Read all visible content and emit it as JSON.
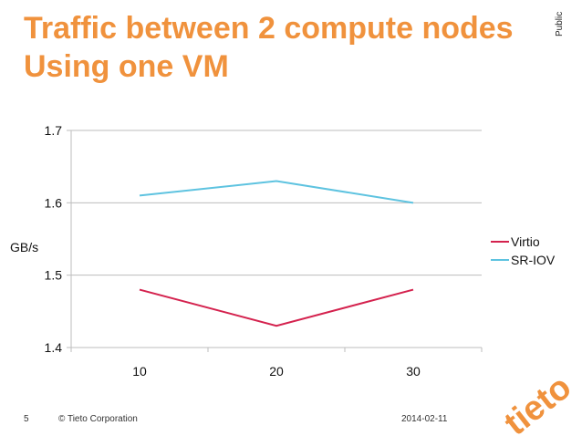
{
  "slide": {
    "title_line1": "Traffic between 2 compute nodes",
    "title_line2": "Using one VM",
    "classification": "Public",
    "page_number": "5",
    "copyright": "© Tieto Corporation",
    "date": "2014-02-11",
    "logo_text": "tieto"
  },
  "colors": {
    "title": "#f0923d",
    "virtio": "#d4224e",
    "sriov": "#5ec3e0",
    "grid": "#bdbdbd",
    "logo": "#f0923d"
  },
  "chart_data": {
    "type": "line",
    "x": [
      10,
      20,
      30
    ],
    "categories": [
      "10",
      "20",
      "30"
    ],
    "series": [
      {
        "name": "Virtio",
        "values": [
          1.48,
          1.43,
          1.48
        ]
      },
      {
        "name": "SR-IOV",
        "values": [
          1.61,
          1.63,
          1.6
        ]
      }
    ],
    "title": "",
    "xlabel": "",
    "ylabel": "GB/s",
    "ylim": [
      1.4,
      1.7
    ],
    "yticks": [
      "1.4",
      "1.5",
      "1.6",
      "1.7"
    ],
    "grid": true,
    "legend": "right"
  }
}
